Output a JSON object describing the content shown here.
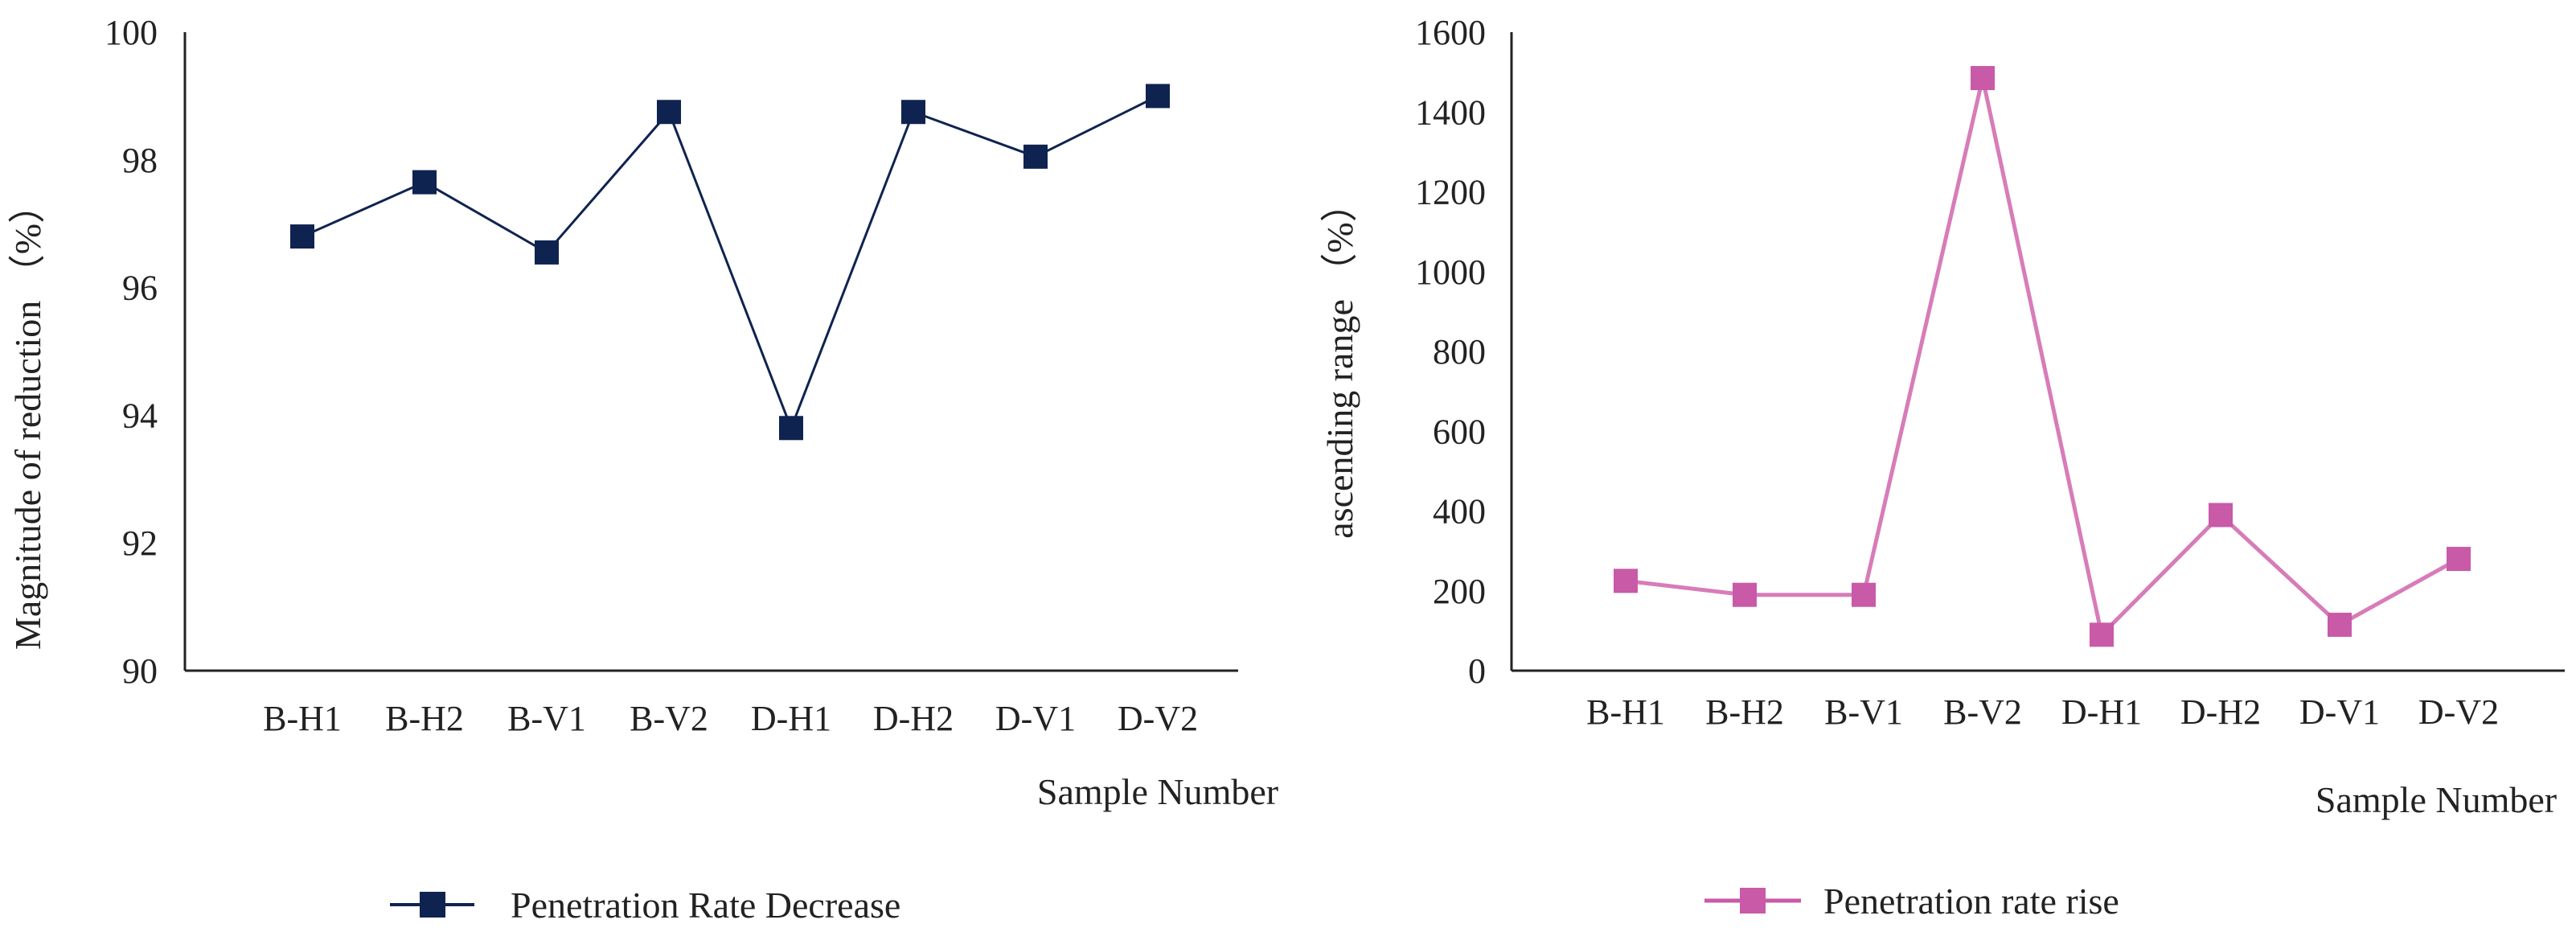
{
  "chart_data": [
    {
      "type": "line",
      "categories": [
        "B-H1",
        "B-H2",
        "B-V1",
        "B-V2",
        "D-H1",
        "D-H2",
        "D-V1",
        "D-V2"
      ],
      "series": [
        {
          "name": "Penetration Rate Decrease",
          "values": [
            96.8,
            97.65,
            96.55,
            98.75,
            93.8,
            98.75,
            98.05,
            99.0
          ],
          "color": "#0f2350"
        }
      ],
      "ylim": [
        90,
        100
      ],
      "yticks": [
        "90",
        "92",
        "94",
        "96",
        "98",
        "100"
      ],
      "ylabel": "Magnitude of reduction （%）",
      "xlabel": "Sample Number",
      "title": "",
      "legend": "bottom"
    },
    {
      "type": "line",
      "categories": [
        "B-H1",
        "B-H2",
        "B-V1",
        "B-V2",
        "D-H1",
        "D-H2",
        "D-V1",
        "D-V2"
      ],
      "series": [
        {
          "name": "Penetration rate rise",
          "values": [
            225,
            190,
            190,
            1485,
            90,
            390,
            115,
            280
          ],
          "color": "#c85aa8",
          "line_color": "#d77cb9"
        }
      ],
      "ylim": [
        0,
        1600
      ],
      "yticks": [
        "0",
        "200",
        "400",
        "600",
        "800",
        "1000",
        "1200",
        "1400",
        "1600"
      ],
      "ylabel": "ascending range （%）",
      "xlabel": "Sample Number",
      "title": "",
      "legend": "bottom"
    }
  ]
}
